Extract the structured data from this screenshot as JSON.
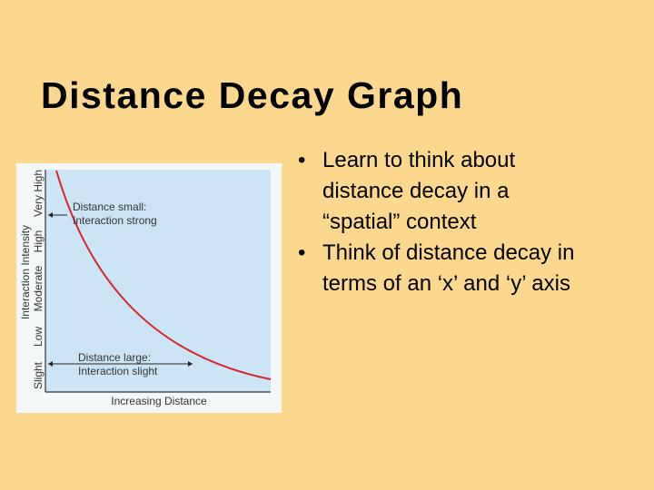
{
  "slide": {
    "title": "Distance Decay Graph",
    "bullets": [
      "Learn to think about distance decay in a “spatial” context",
      "Think of distance decay in terms of an ‘x’ and ‘y’ axis"
    ]
  },
  "figure": {
    "y_axis_label": "Interaction Intensity",
    "y_levels": [
      "Very High",
      "High",
      "Moderate",
      "Low",
      "Slight"
    ],
    "x_axis_label": "Increasing Distance",
    "annotations": [
      [
        "Distance small:",
        "Interaction strong"
      ],
      [
        "Distance large:",
        "Interaction slight"
      ]
    ]
  }
}
